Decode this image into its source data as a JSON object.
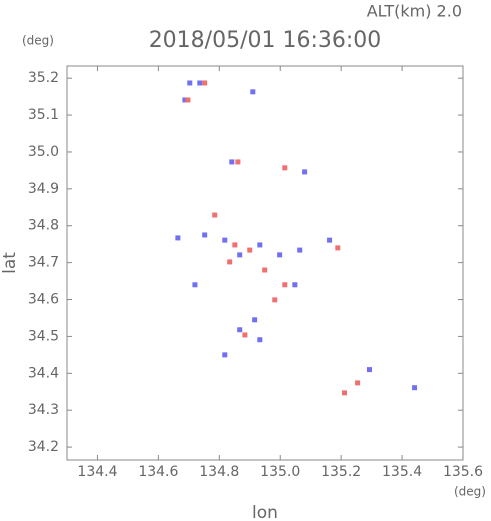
{
  "chart_data": {
    "type": "scatter",
    "title": "2018/05/01 16:36:00",
    "subtitle": "ALT(km) 2.0",
    "x_label": "lon",
    "y_label": "lat",
    "x_unit": "(deg)",
    "y_unit": "(deg)",
    "xlim": [
      134.3,
      135.6
    ],
    "ylim": [
      34.165,
      35.233
    ],
    "xticks": [
      134.4,
      134.6,
      134.8,
      {
        "value": 135.0,
        "label": "135.0"
      },
      135.2,
      135.4,
      135.6
    ],
    "yticks": [
      34.2,
      34.3,
      34.4,
      34.5,
      34.6,
      34.7,
      34.8,
      34.9,
      {
        "value": 35.0,
        "label": "35.0"
      },
      35.1,
      35.2
    ],
    "grid": false,
    "series": [
      {
        "color": "#7070f0",
        "x": [
          134.703,
          134.736,
          134.687,
          134.91,
          134.841,
          134.664,
          134.752,
          134.818,
          134.867,
          134.933,
          134.998,
          135.064,
          135.048,
          134.867,
          134.916,
          134.933,
          134.818,
          135.293,
          135.441,
          134.72,
          135.162,
          135.08
        ],
        "values": [
          35.187,
          35.187,
          35.141,
          35.163,
          34.973,
          34.767,
          34.775,
          34.761,
          34.721,
          34.748,
          34.721,
          34.734,
          34.64,
          34.518,
          34.545,
          34.491,
          34.45,
          34.41,
          34.361,
          34.64,
          34.761,
          34.946
        ]
      },
      {
        "color": "#f07070",
        "x": [
          134.697,
          134.752,
          134.861,
          134.785,
          134.851,
          134.9,
          134.949,
          134.982,
          134.884,
          135.189,
          135.211,
          135.254,
          134.834,
          135.015,
          135.015
        ],
        "values": [
          35.141,
          35.187,
          34.973,
          34.829,
          34.748,
          34.734,
          34.68,
          34.599,
          34.504,
          34.74,
          34.347,
          34.374,
          34.702,
          34.64,
          34.957
        ]
      }
    ]
  }
}
